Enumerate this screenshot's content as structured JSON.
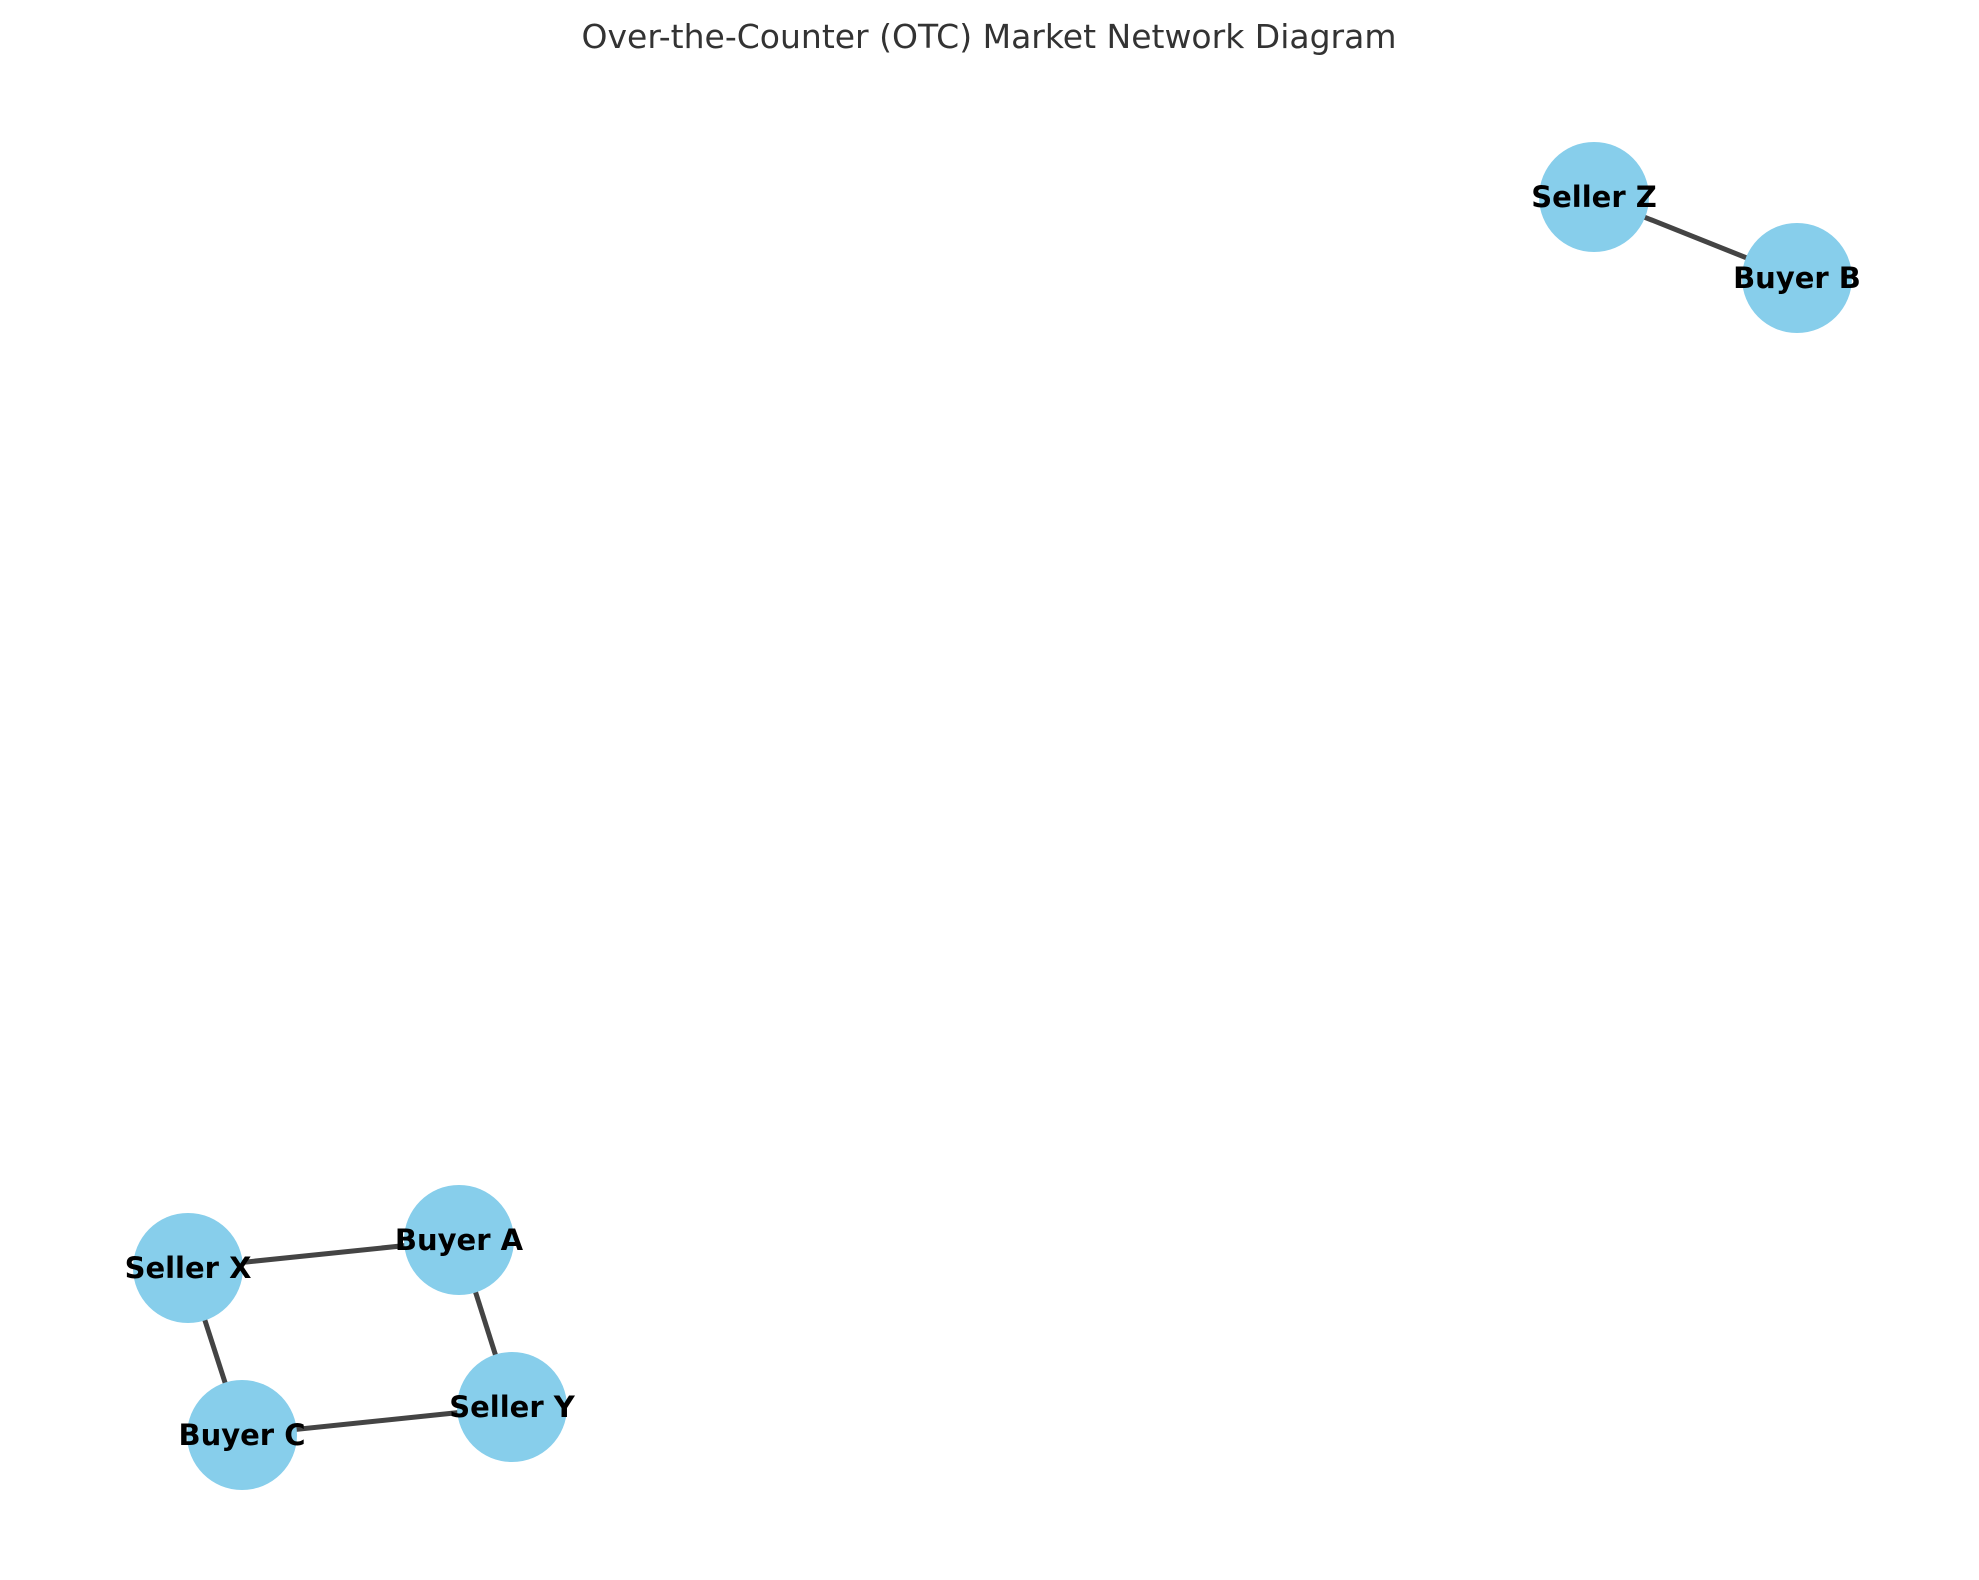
{
  "diagram": {
    "title": "Over-the-Counter (OTC) Market Network Diagram",
    "node_color": "#87ceeb",
    "edge_color": "#444444",
    "nodes": [
      {
        "id": "seller-z",
        "label": "Seller Z"
      },
      {
        "id": "buyer-b",
        "label": "Buyer B"
      },
      {
        "id": "seller-x",
        "label": "Seller X"
      },
      {
        "id": "buyer-a",
        "label": "Buyer A"
      },
      {
        "id": "buyer-c",
        "label": "Buyer C"
      },
      {
        "id": "seller-y",
        "label": "Seller Y"
      }
    ],
    "edges": [
      {
        "source": "seller-z",
        "target": "buyer-b"
      },
      {
        "source": "seller-x",
        "target": "buyer-a"
      },
      {
        "source": "seller-x",
        "target": "buyer-c"
      },
      {
        "source": "buyer-a",
        "target": "seller-y"
      },
      {
        "source": "buyer-c",
        "target": "seller-y"
      }
    ]
  }
}
